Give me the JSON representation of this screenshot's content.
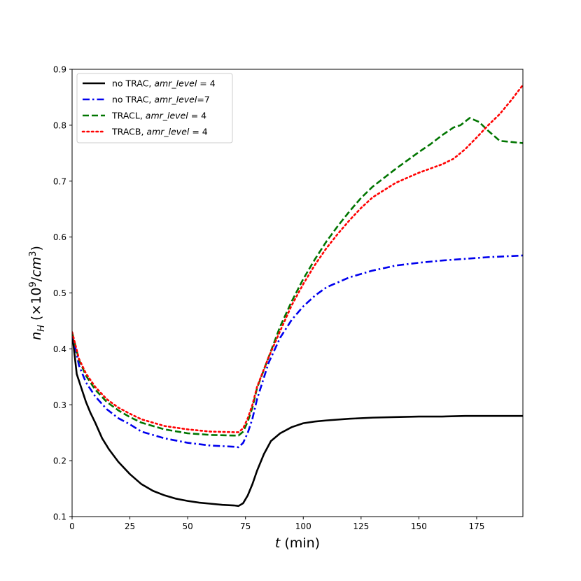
{
  "chart_data": {
    "type": "line",
    "xlabel": "t (min)",
    "ylabel": "n_H (×10^9/cm^3)",
    "xlim": [
      0,
      195
    ],
    "ylim": [
      0.1,
      0.9
    ],
    "xticks": [
      0,
      25,
      50,
      75,
      100,
      125,
      150,
      175
    ],
    "yticks": [
      0.1,
      0.2,
      0.3,
      0.4,
      0.5,
      0.6,
      0.7,
      0.8,
      0.9
    ],
    "grid": false,
    "legend_position": "top-left",
    "series": [
      {
        "name": "no TRAC, amr_level = 4",
        "legend_plain": "no TRAC, ",
        "legend_italic": "amr_level",
        "legend_suffix": " = 4",
        "color": "#000000",
        "style": "solid",
        "x": [
          0,
          2,
          4,
          6,
          8,
          10,
          13,
          16,
          20,
          25,
          30,
          35,
          40,
          45,
          50,
          55,
          60,
          65,
          70,
          72,
          74,
          76,
          78,
          80,
          83,
          86,
          90,
          95,
          100,
          105,
          110,
          120,
          130,
          140,
          150,
          160,
          170,
          180,
          195
        ],
        "y": [
          0.43,
          0.355,
          0.33,
          0.305,
          0.285,
          0.268,
          0.24,
          0.22,
          0.198,
          0.176,
          0.158,
          0.146,
          0.138,
          0.132,
          0.128,
          0.125,
          0.123,
          0.121,
          0.12,
          0.119,
          0.124,
          0.138,
          0.158,
          0.182,
          0.212,
          0.235,
          0.249,
          0.26,
          0.267,
          0.27,
          0.272,
          0.275,
          0.277,
          0.278,
          0.279,
          0.279,
          0.28,
          0.28,
          0.28
        ]
      },
      {
        "name": "no TRAC, amr_level=7",
        "legend_plain": "no TRAC, ",
        "legend_italic": "amr_level",
        "legend_suffix": "=7",
        "color": "#0000ee",
        "style": "dashdot",
        "x": [
          0,
          3,
          6,
          10,
          15,
          20,
          25,
          30,
          40,
          50,
          60,
          70,
          72,
          74,
          76,
          78,
          80,
          85,
          90,
          95,
          100,
          105,
          110,
          120,
          130,
          140,
          150,
          160,
          170,
          180,
          195
        ],
        "y": [
          0.43,
          0.37,
          0.34,
          0.315,
          0.292,
          0.276,
          0.265,
          0.252,
          0.24,
          0.232,
          0.227,
          0.225,
          0.224,
          0.232,
          0.25,
          0.275,
          0.31,
          0.375,
          0.42,
          0.452,
          0.476,
          0.495,
          0.51,
          0.528,
          0.54,
          0.549,
          0.554,
          0.558,
          0.561,
          0.564,
          0.567
        ]
      },
      {
        "name": "TRACL, amr_level = 4",
        "legend_plain": "TRACL, ",
        "legend_italic": "amr_level",
        "legend_suffix": " = 4",
        "color": "#007500",
        "style": "dashed",
        "x": [
          0,
          3,
          6,
          10,
          15,
          20,
          25,
          30,
          40,
          50,
          60,
          70,
          72,
          74,
          76,
          78,
          80,
          85,
          90,
          95,
          100,
          105,
          110,
          115,
          120,
          125,
          130,
          140,
          150,
          155,
          160,
          165,
          168,
          172,
          176,
          180,
          185,
          190,
          195
        ],
        "y": [
          0.43,
          0.38,
          0.352,
          0.327,
          0.305,
          0.29,
          0.278,
          0.268,
          0.256,
          0.249,
          0.246,
          0.245,
          0.245,
          0.252,
          0.27,
          0.295,
          0.33,
          0.385,
          0.44,
          0.485,
          0.525,
          0.56,
          0.592,
          0.62,
          0.646,
          0.67,
          0.69,
          0.722,
          0.752,
          0.766,
          0.782,
          0.796,
          0.8,
          0.813,
          0.806,
          0.79,
          0.772,
          0.77,
          0.768
        ]
      },
      {
        "name": "TRACB, amr_level = 4",
        "legend_plain": "TRACB, ",
        "legend_italic": "amr_level",
        "legend_suffix": " = 4",
        "color": "#ff0000",
        "style": "dotted",
        "x": [
          0,
          3,
          6,
          10,
          15,
          20,
          25,
          30,
          40,
          50,
          60,
          70,
          72,
          74,
          76,
          78,
          80,
          85,
          90,
          95,
          100,
          105,
          110,
          115,
          120,
          125,
          130,
          140,
          150,
          160,
          165,
          170,
          175,
          180,
          185,
          190,
          195
        ],
        "y": [
          0.43,
          0.382,
          0.356,
          0.332,
          0.31,
          0.295,
          0.284,
          0.274,
          0.262,
          0.256,
          0.252,
          0.251,
          0.251,
          0.258,
          0.276,
          0.3,
          0.332,
          0.385,
          0.432,
          0.478,
          0.516,
          0.55,
          0.58,
          0.606,
          0.63,
          0.652,
          0.671,
          0.697,
          0.715,
          0.73,
          0.74,
          0.757,
          0.778,
          0.8,
          0.82,
          0.845,
          0.872
        ]
      }
    ]
  }
}
